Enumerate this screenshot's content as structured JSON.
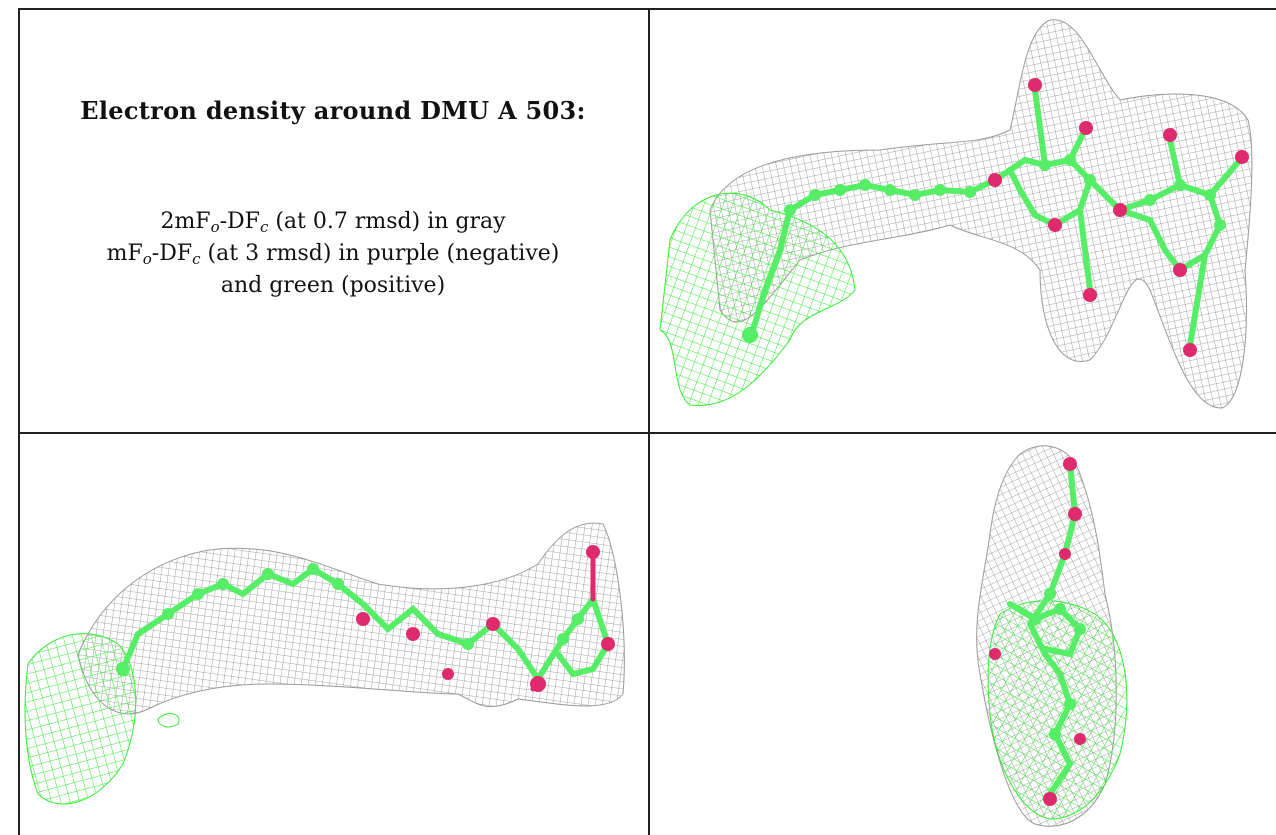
{
  "caption": {
    "title": "Electron density around DMU A 503:",
    "line1": {
      "pre": "2mF",
      "sub1": "o",
      "mid": "-DF",
      "sub2": "c",
      "post": " (at 0.7 rmsd) in gray"
    },
    "line2": {
      "pre": "mF",
      "sub1": "o",
      "mid": "-DF",
      "sub2": "c",
      "post": " (at 3 rmsd) in purple (negative)"
    },
    "line3": "and green (positive)"
  },
  "colors": {
    "density_mesh": "#8c8c8c",
    "positive_difference": "#33ee33",
    "negative_difference": "#e0246c",
    "carbon_atoms": "#55ee66",
    "oxygen_atoms": "#e02a6e"
  },
  "panels": [
    {
      "view": "front"
    },
    {
      "view": "side"
    },
    {
      "view": "end-on"
    }
  ]
}
